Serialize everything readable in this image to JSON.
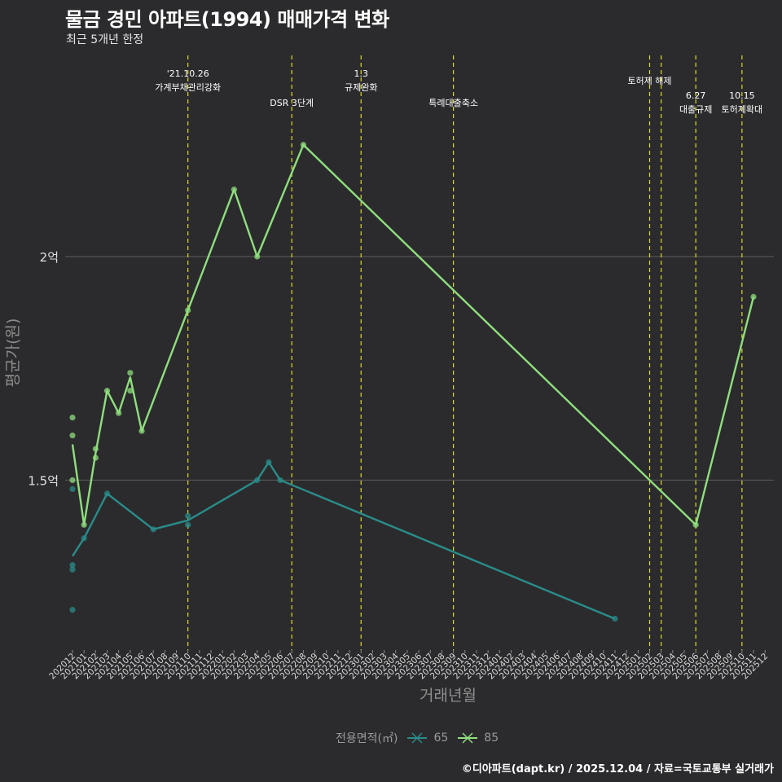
{
  "title": "물금 경민 아파트(1994) 매매가격 변화",
  "subtitle": "최근 5개년 한정",
  "footer": "©디아파트(dapt.kr) / 2025.12.04 / 자료=국토교통부 실거래가",
  "colors": {
    "background": "#2b2b2d",
    "series_65": "#2a8c8a",
    "series_85": "#8fde7e",
    "event_line": "#d9d92a",
    "grid": "#5c5c5c"
  },
  "chart_data": {
    "type": "line",
    "title": "물금 경민 아파트(1994) 매매가격 변화",
    "subtitle": "최근 5개년 한정",
    "xlabel": "거래년월",
    "ylabel": "평균가(원)",
    "y_unit": "억",
    "ylim": [
      1.12,
      2.45
    ],
    "y_ticks": [
      1.5,
      2.0
    ],
    "y_tick_labels": [
      "1.5억",
      "2억"
    ],
    "x_categories": [
      "202012",
      "202101",
      "202102",
      "202103",
      "202104",
      "202105",
      "202106",
      "202107",
      "202108",
      "202109",
      "202110",
      "202111",
      "202112",
      "202201",
      "202202",
      "202203",
      "202204",
      "202205",
      "202206",
      "202207",
      "202208",
      "202209",
      "202210",
      "202211",
      "202212",
      "202301",
      "202302",
      "202303",
      "202304",
      "202305",
      "202306",
      "202307",
      "202308",
      "202309",
      "202310",
      "202311",
      "202312",
      "202401",
      "202402",
      "202403",
      "202404",
      "202405",
      "202406",
      "202407",
      "202408",
      "202409",
      "202410",
      "202411",
      "202412",
      "202501",
      "202502",
      "202503",
      "202504",
      "202505",
      "202506",
      "202507",
      "202508",
      "202509",
      "202510",
      "202511",
      "202512"
    ],
    "legend_title": "전용면적(㎡)",
    "series": [
      {
        "name": "65",
        "color": "#2a8c8a",
        "line": [
          [
            "202012",
            1.33
          ],
          [
            "202101",
            1.37
          ],
          [
            "202103",
            1.47
          ],
          [
            "202107",
            1.39
          ],
          [
            "202110",
            1.41
          ],
          [
            "202204",
            1.5
          ],
          [
            "202205",
            1.54
          ],
          [
            "202206",
            1.5
          ],
          [
            "202411",
            1.19
          ]
        ],
        "points": [
          [
            "202012",
            1.48
          ],
          [
            "202012",
            1.31
          ],
          [
            "202012",
            1.3
          ],
          [
            "202012",
            1.21
          ],
          [
            "202101",
            1.37
          ],
          [
            "202103",
            1.47
          ],
          [
            "202107",
            1.39
          ],
          [
            "202110",
            1.4
          ],
          [
            "202110",
            1.42
          ],
          [
            "202204",
            1.5
          ],
          [
            "202205",
            1.54
          ],
          [
            "202206",
            1.5
          ],
          [
            "202411",
            1.19
          ]
        ]
      },
      {
        "name": "85",
        "color": "#8fde7e",
        "line": [
          [
            "202012",
            1.58
          ],
          [
            "202101",
            1.4
          ],
          [
            "202102",
            1.56
          ],
          [
            "202103",
            1.7
          ],
          [
            "202104",
            1.65
          ],
          [
            "202105",
            1.73
          ],
          [
            "202106",
            1.61
          ],
          [
            "202110",
            1.88
          ],
          [
            "202202",
            2.15
          ],
          [
            "202204",
            2.0
          ],
          [
            "202208",
            2.25
          ],
          [
            "202506",
            1.4
          ],
          [
            "202511",
            1.91
          ]
        ],
        "points": [
          [
            "202012",
            1.64
          ],
          [
            "202012",
            1.6
          ],
          [
            "202012",
            1.5
          ],
          [
            "202101",
            1.4
          ],
          [
            "202102",
            1.55
          ],
          [
            "202102",
            1.57
          ],
          [
            "202103",
            1.7
          ],
          [
            "202104",
            1.65
          ],
          [
            "202105",
            1.74
          ],
          [
            "202105",
            1.7
          ],
          [
            "202106",
            1.61
          ],
          [
            "202110",
            1.88
          ],
          [
            "202202",
            2.15
          ],
          [
            "202204",
            2.0
          ],
          [
            "202208",
            2.25
          ],
          [
            "202506",
            1.4
          ],
          [
            "202511",
            1.91
          ]
        ]
      }
    ],
    "events": [
      {
        "x": "202110",
        "lines": [
          "'21.10.26",
          "가계부채관리강화"
        ],
        "label_row": 0
      },
      {
        "x": "202207",
        "lines": [
          "DSR 3단계"
        ],
        "label_row": 2
      },
      {
        "x": "202301",
        "lines": [
          "1.3",
          "규제완화"
        ],
        "label_row": 0
      },
      {
        "x": "202309",
        "lines": [
          "특례대출축소"
        ],
        "label_row": 2
      },
      {
        "x": "202502",
        "lines": [
          "토허제 해제"
        ],
        "label_row": 1
      },
      {
        "x": "202503",
        "lines": [],
        "label_row": 1
      },
      {
        "x": "202506",
        "lines": [
          "6.27",
          "대출규제"
        ],
        "label_row": 3
      },
      {
        "x": "202510",
        "lines": [
          "10.15",
          "토허제확대"
        ],
        "label_row": 3
      }
    ]
  }
}
